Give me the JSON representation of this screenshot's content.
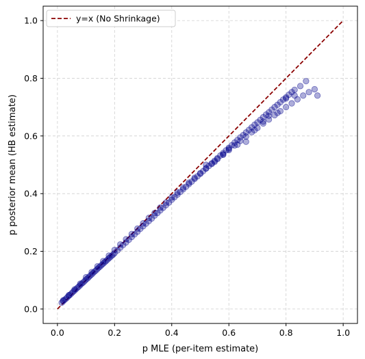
{
  "chart_data": {
    "type": "scatter",
    "title": "",
    "xlabel": "p MLE (per-item estimate)",
    "ylabel": "p posterior mean (HB estimate)",
    "xlim": [
      -0.05,
      1.05
    ],
    "ylim": [
      -0.05,
      1.05
    ],
    "xticks": [
      "0.0",
      "0.2",
      "0.4",
      "0.6",
      "0.8",
      "1.0"
    ],
    "yticks": [
      "0.0",
      "0.2",
      "0.4",
      "0.6",
      "0.8",
      "1.0"
    ],
    "grid": true,
    "legend": {
      "placement": "top-left",
      "entries": [
        "y=x (No Shrinkage)"
      ]
    },
    "series": [
      {
        "name": "y=x (No Shrinkage)",
        "kind": "dashed-line",
        "color": "#8b0000",
        "x": [
          0.0,
          1.0
        ],
        "y": [
          0.0,
          1.0
        ]
      },
      {
        "kind": "scatter",
        "color": "#00008b",
        "x": [
          0.015,
          0.02,
          0.025,
          0.03,
          0.035,
          0.04,
          0.045,
          0.05,
          0.055,
          0.06,
          0.065,
          0.07,
          0.075,
          0.08,
          0.085,
          0.09,
          0.095,
          0.1,
          0.105,
          0.11,
          0.115,
          0.12,
          0.125,
          0.13,
          0.135,
          0.14,
          0.145,
          0.15,
          0.155,
          0.16,
          0.165,
          0.17,
          0.175,
          0.18,
          0.185,
          0.19,
          0.195,
          0.2,
          0.21,
          0.22,
          0.23,
          0.24,
          0.25,
          0.26,
          0.27,
          0.28,
          0.29,
          0.3,
          0.31,
          0.32,
          0.33,
          0.34,
          0.35,
          0.36,
          0.37,
          0.38,
          0.39,
          0.4,
          0.41,
          0.42,
          0.43,
          0.44,
          0.45,
          0.46,
          0.47,
          0.48,
          0.49,
          0.5,
          0.51,
          0.52,
          0.53,
          0.54,
          0.55,
          0.56,
          0.57,
          0.58,
          0.59,
          0.6,
          0.61,
          0.62,
          0.63,
          0.64,
          0.65,
          0.66,
          0.67,
          0.68,
          0.69,
          0.7,
          0.71,
          0.72,
          0.73,
          0.74,
          0.75,
          0.76,
          0.77,
          0.78,
          0.79,
          0.8,
          0.81,
          0.82,
          0.83,
          0.85,
          0.87,
          0.91,
          0.02,
          0.04,
          0.06,
          0.08,
          0.1,
          0.12,
          0.14,
          0.16,
          0.18,
          0.2,
          0.22,
          0.24,
          0.26,
          0.28,
          0.3,
          0.32,
          0.34,
          0.36,
          0.38,
          0.4,
          0.42,
          0.44,
          0.46,
          0.48,
          0.5,
          0.52,
          0.54,
          0.56,
          0.58,
          0.6,
          0.62,
          0.64,
          0.66,
          0.68,
          0.7,
          0.72,
          0.74,
          0.76,
          0.78,
          0.8,
          0.82,
          0.84,
          0.86,
          0.88,
          0.9,
          0.52,
          0.55,
          0.58,
          0.6,
          0.63,
          0.66,
          0.69,
          0.72,
          0.74,
          0.77,
          0.8,
          0.83
        ],
        "y": [
          0.022,
          0.027,
          0.032,
          0.036,
          0.041,
          0.046,
          0.05,
          0.055,
          0.06,
          0.064,
          0.069,
          0.074,
          0.078,
          0.083,
          0.088,
          0.092,
          0.097,
          0.102,
          0.106,
          0.111,
          0.116,
          0.12,
          0.125,
          0.13,
          0.134,
          0.139,
          0.144,
          0.148,
          0.153,
          0.157,
          0.162,
          0.166,
          0.171,
          0.176,
          0.18,
          0.185,
          0.189,
          0.194,
          0.203,
          0.213,
          0.222,
          0.231,
          0.24,
          0.25,
          0.259,
          0.268,
          0.278,
          0.287,
          0.296,
          0.305,
          0.314,
          0.324,
          0.333,
          0.342,
          0.351,
          0.36,
          0.369,
          0.379,
          0.388,
          0.397,
          0.406,
          0.415,
          0.424,
          0.433,
          0.442,
          0.451,
          0.46,
          0.469,
          0.478,
          0.487,
          0.496,
          0.505,
          0.514,
          0.523,
          0.532,
          0.541,
          0.55,
          0.559,
          0.568,
          0.577,
          0.586,
          0.595,
          0.603,
          0.612,
          0.621,
          0.63,
          0.639,
          0.647,
          0.656,
          0.665,
          0.674,
          0.682,
          0.691,
          0.7,
          0.708,
          0.717,
          0.726,
          0.734,
          0.743,
          0.752,
          0.76,
          0.773,
          0.79,
          0.74,
          0.03,
          0.048,
          0.068,
          0.088,
          0.11,
          0.128,
          0.148,
          0.166,
          0.185,
          0.205,
          0.224,
          0.242,
          0.26,
          0.279,
          0.297,
          0.316,
          0.333,
          0.352,
          0.369,
          0.387,
          0.404,
          0.421,
          0.438,
          0.455,
          0.471,
          0.488,
          0.503,
          0.52,
          0.536,
          0.551,
          0.567,
          0.583,
          0.598,
          0.613,
          0.628,
          0.643,
          0.657,
          0.672,
          0.686,
          0.7,
          0.713,
          0.727,
          0.74,
          0.752,
          0.762,
          0.5,
          0.51,
          0.535,
          0.555,
          0.57,
          0.58,
          0.62,
          0.65,
          0.67,
          0.68,
          0.73,
          0.74
        ]
      }
    ]
  }
}
